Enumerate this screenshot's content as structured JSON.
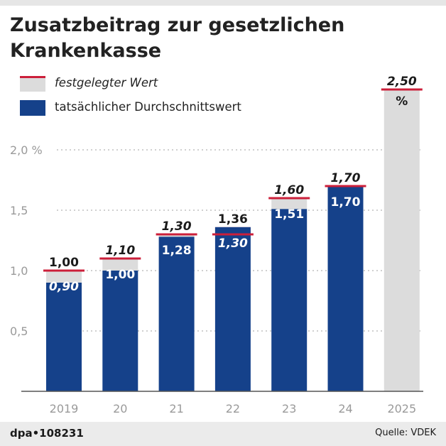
{
  "header": {
    "title_line1": "Zusatzbeitrag zur gesetzlichen",
    "title_line2": "Krankenkasse"
  },
  "legend": {
    "fixed_label": "festgelegter Wert",
    "actual_label": "tatsächlicher Durchschnittswert"
  },
  "colors": {
    "actual": "#15418a",
    "fixed_over": "#ee8b98",
    "fixed_under": "#dcdcdc",
    "marker": "#cc1f3a",
    "grid": "#b3b3b3",
    "axis": "#555555",
    "tick": "#9a9a9a"
  },
  "chart_data": {
    "type": "bar",
    "title": "Zusatzbeitrag zur gesetzlichen Krankenkasse",
    "categories": [
      "2019",
      "20",
      "21",
      "22",
      "23",
      "24",
      "2025"
    ],
    "series": [
      {
        "name": "festgelegter Wert",
        "values": [
          1.0,
          1.1,
          1.3,
          1.3,
          1.6,
          1.7,
          2.5
        ]
      },
      {
        "name": "tatsächlicher Durchschnittswert",
        "values": [
          0.9,
          1.0,
          1.28,
          1.36,
          1.51,
          1.7,
          null
        ]
      }
    ],
    "labels_top": [
      "1,00",
      "1,10",
      "1,30",
      "1,36",
      "1,60",
      "1,70",
      "2,50"
    ],
    "labels_top_italic": [
      false,
      true,
      true,
      false,
      true,
      true,
      true
    ],
    "labels_inside": [
      "0,90",
      "1,00",
      "1,28",
      "1,30",
      "1,51",
      "1,70",
      ""
    ],
    "labels_inside_italic": [
      true,
      false,
      false,
      true,
      false,
      false,
      false
    ],
    "unit_label": "%",
    "yticks": [
      0.5,
      1.0,
      1.5,
      2.0
    ],
    "ytick_labels": [
      "0,5",
      "1,0",
      "1,5",
      "2,0 %"
    ],
    "ylim": [
      0,
      2.5
    ],
    "xlabel": "",
    "ylabel": "",
    "grid": true
  },
  "footer": {
    "source_id": "dpa•108231",
    "credit": "Quelle: VDEK"
  }
}
